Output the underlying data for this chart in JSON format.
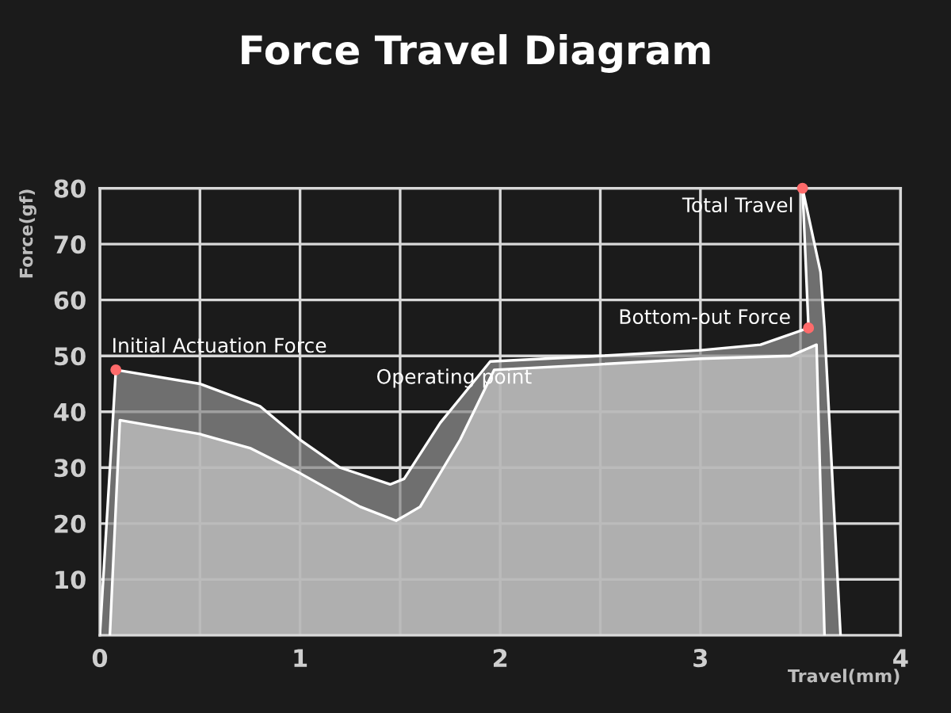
{
  "chart_data": {
    "type": "area",
    "title": "Force Travel Diagram",
    "xlabel": "Travel(mm)",
    "ylabel": "Force(gf)",
    "series": [
      {
        "color": "#8c8c8c",
        "x": [
          0,
          0.08,
          0.5,
          0.8,
          1.0,
          1.2,
          1.45,
          1.52,
          1.7,
          1.95,
          2.5,
          3.0,
          3.3,
          3.54,
          3.51,
          3.6,
          3.62,
          3.7
        ],
        "values": [
          0,
          47.5,
          45,
          41,
          35,
          30,
          27,
          28,
          38,
          49,
          50,
          51,
          52,
          55,
          80,
          65,
          55,
          0
        ]
      },
      {
        "color": "#c4c4c4",
        "x": [
          0.05,
          0.1,
          0.5,
          0.75,
          1.0,
          1.3,
          1.48,
          1.6,
          1.8,
          1.97,
          2.5,
          3.0,
          3.45,
          3.58,
          3.62
        ],
        "values": [
          0,
          38.5,
          36,
          33.5,
          29,
          23,
          20.5,
          23,
          35,
          47.5,
          48.5,
          49.5,
          50,
          52,
          0
        ]
      }
    ],
    "annotations": [
      {
        "text": "Initial Actuation Force",
        "x": 0.08,
        "y": 47.5
      },
      "Operating point",
      {
        "text": "Bottom-out Force",
        "x": 3.54,
        "y": 55
      },
      {
        "text": "Total Travel",
        "x": 3.51,
        "y": 80
      }
    ],
    "xlim": [
      0,
      4
    ],
    "ylim": [
      0,
      80
    ],
    "xticks": [
      0,
      {
        "value": 0.5,
        "label": null
      },
      1,
      {
        "value": 1.5,
        "label": null
      },
      2,
      {
        "value": 2.5,
        "label": null
      },
      3,
      {
        "value": 3.5,
        "label": null
      },
      4
    ],
    "yticks": [
      10,
      20,
      30,
      40,
      50,
      60,
      70,
      80
    ],
    "grid": true
  }
}
